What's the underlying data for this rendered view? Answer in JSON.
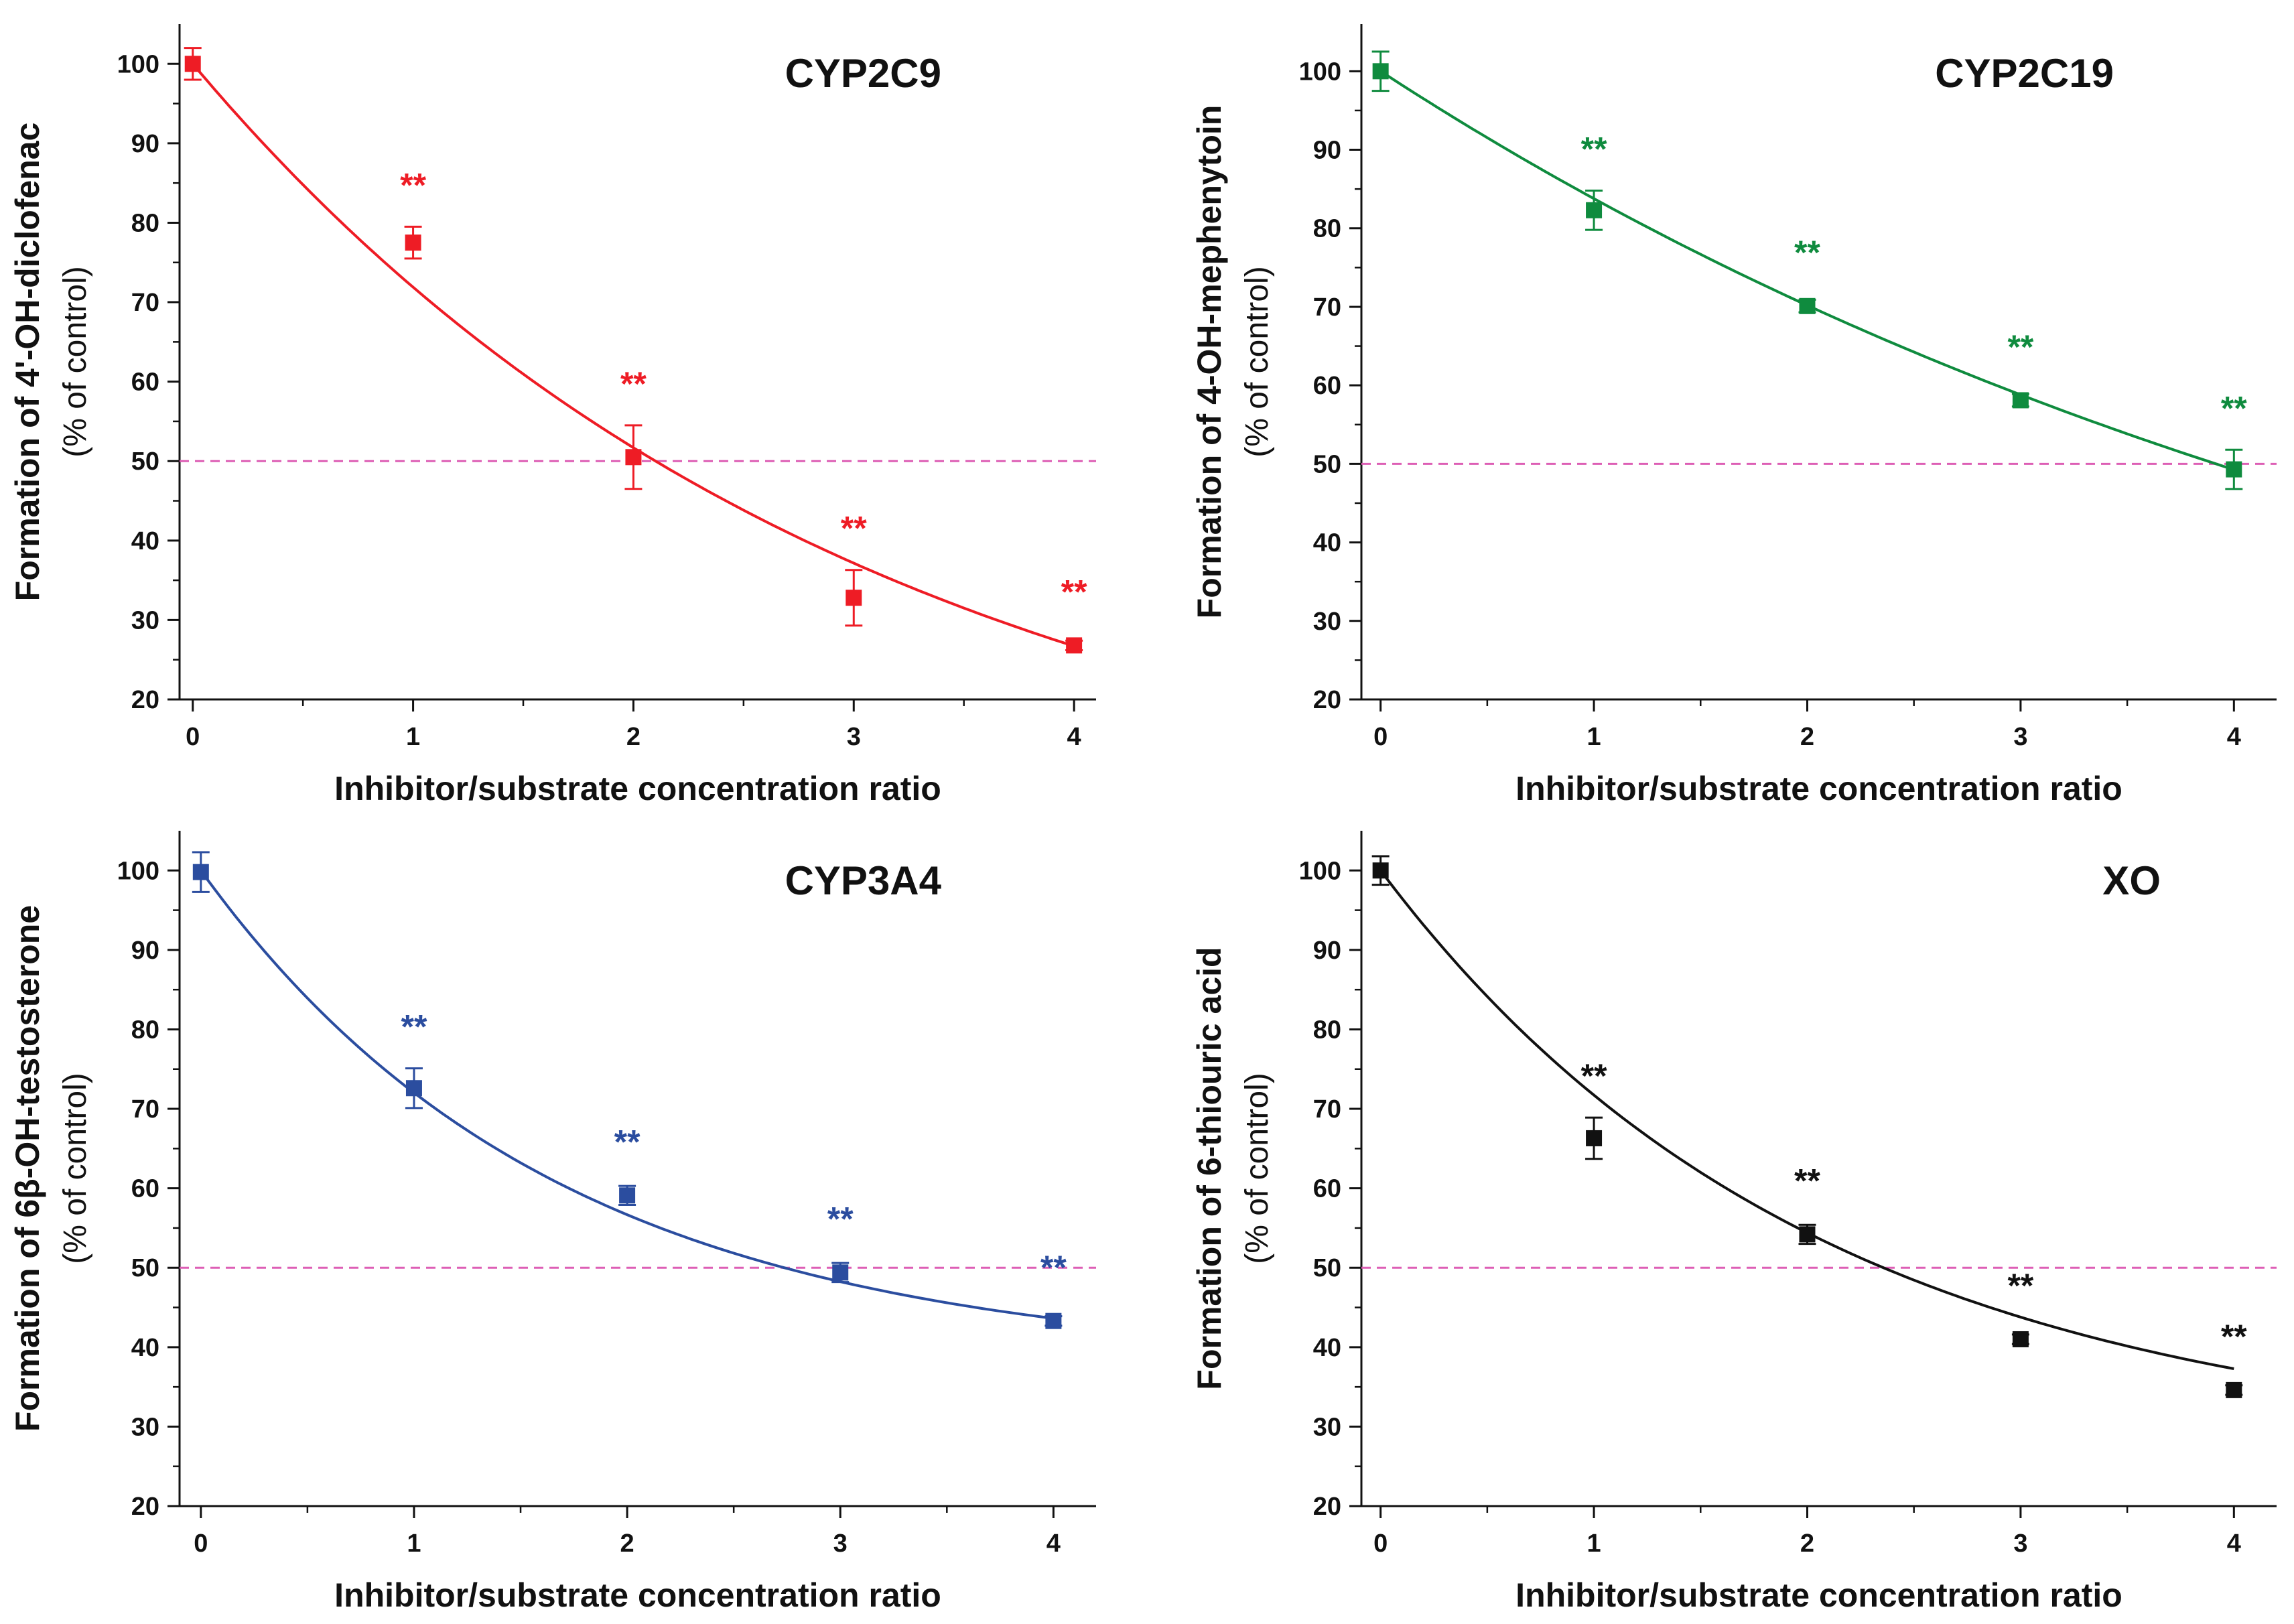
{
  "chart_data": [
    {
      "type": "scatter",
      "title": "CYP2C9",
      "color": "#ee1c25",
      "xlabel": "Inhibitor/substrate concentration ratio",
      "ylabel": "Formation of 4'-OH-diclofenac",
      "ylabel_sub": "(% of control)",
      "xlim": [
        -0.06,
        4.1
      ],
      "ylim": [
        20,
        105
      ],
      "xticks": [
        0,
        1,
        2,
        3,
        4
      ],
      "yticks": [
        20,
        30,
        40,
        50,
        60,
        70,
        80,
        90,
        100
      ],
      "x": [
        0,
        1,
        2,
        3,
        4
      ],
      "y": [
        100,
        77.5,
        50.5,
        32.8,
        26.8
      ],
      "err": [
        2,
        2,
        4,
        3.5,
        0.6
      ],
      "significance": [
        "",
        "**",
        "**",
        "**",
        "**"
      ],
      "fit": {
        "plateau": 0,
        "span": 100,
        "k": 0.33
      },
      "reference_line": 50
    },
    {
      "type": "scatter",
      "title": "CYP2C19",
      "color": "#0f8b3e",
      "xlabel": "Inhibitor/substrate concentration ratio",
      "ylabel": "Formation of 4-OH-mephenytoin",
      "ylabel_sub": "(% of control)",
      "xlim": [
        -0.09,
        4.2
      ],
      "ylim": [
        20,
        106
      ],
      "xticks": [
        0,
        1,
        2,
        3,
        4
      ],
      "yticks": [
        20,
        30,
        40,
        50,
        60,
        70,
        80,
        90,
        100
      ],
      "x": [
        0,
        1,
        2,
        3,
        4
      ],
      "y": [
        100,
        82.3,
        70.1,
        58.1,
        49.3
      ],
      "err": [
        2.5,
        2.5,
        0.8,
        0.8,
        2.5
      ],
      "significance": [
        "",
        "**",
        "**",
        "**",
        "**"
      ],
      "fit": {
        "plateau": 0,
        "span": 100,
        "k": 0.177
      },
      "reference_line": 50
    },
    {
      "type": "scatter",
      "title": "CYP3A4",
      "color": "#2b4d9f",
      "xlabel": "Inhibitor/substrate concentration ratio",
      "ylabel": "Formation of 6β-OH-testosterone",
      "ylabel_sub": "(% of control)",
      "xlim": [
        -0.1,
        4.2
      ],
      "ylim": [
        20,
        105
      ],
      "xticks": [
        0,
        1,
        2,
        3,
        4
      ],
      "yticks": [
        20,
        30,
        40,
        50,
        60,
        70,
        80,
        90,
        100
      ],
      "x": [
        0,
        1,
        2,
        3,
        4
      ],
      "y": [
        99.8,
        72.6,
        59.1,
        49.4,
        43.3
      ],
      "err": [
        2.5,
        2.5,
        1.2,
        1.2,
        0.6
      ],
      "significance": [
        "",
        "**",
        "**",
        "**",
        "**"
      ],
      "fit": {
        "plateau": 38,
        "span": 62,
        "k": 0.6
      },
      "reference_line": 50
    },
    {
      "type": "scatter",
      "title": "XO",
      "color": "#111111",
      "xlabel": "Inhibitor/substrate concentration ratio",
      "ylabel": "Formation of 6-thiouric acid",
      "ylabel_sub": "(% of control)",
      "xlim": [
        -0.09,
        4.2
      ],
      "ylim": [
        20,
        105
      ],
      "xticks": [
        0,
        1,
        2,
        3,
        4
      ],
      "yticks": [
        20,
        30,
        40,
        50,
        60,
        70,
        80,
        90,
        100
      ],
      "x": [
        0,
        1,
        2,
        3,
        4
      ],
      "y": [
        100,
        66.3,
        54.2,
        41,
        34.6
      ],
      "err": [
        1.8,
        2.6,
        1.2,
        0.6,
        0.6
      ],
      "significance": [
        "",
        "**",
        "**",
        "**",
        "**"
      ],
      "fit": {
        "plateau": 27,
        "span": 73,
        "k": 0.49
      },
      "reference_line": 50
    }
  ],
  "colors": {
    "reference_line": "#dd5fb5",
    "axis": "#111111"
  }
}
